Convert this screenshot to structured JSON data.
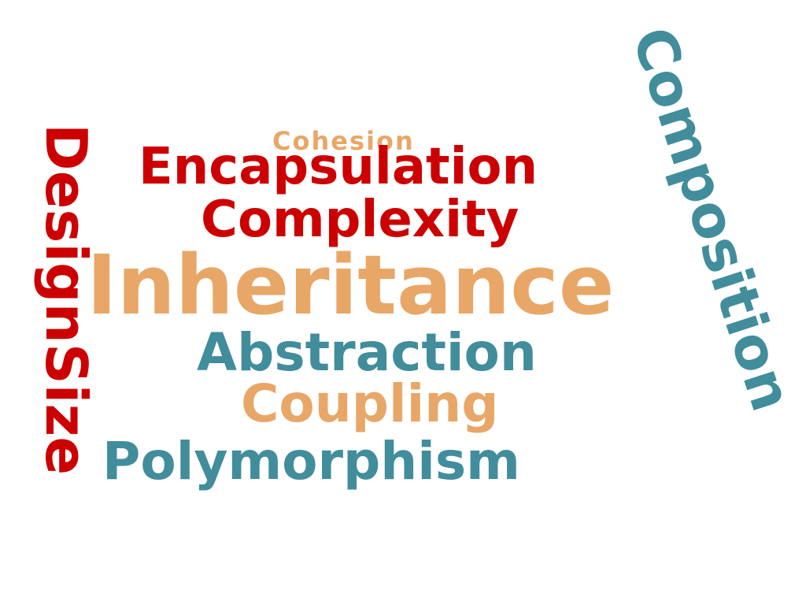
{
  "colors": {
    "red": "#cc0000",
    "orange": "#e8a767",
    "teal": "#418d9c",
    "background": "#ffffff"
  },
  "words": {
    "inheritance": "Inheritance",
    "encapsulation": "Encapsulation",
    "complexity": "Complexity",
    "abstraction": "Abstraction",
    "coupling": "Coupling",
    "polymorphism": "Polymorphism",
    "cohesion": "Cohesion",
    "designsize": "DesignSize",
    "composition": "Composition"
  }
}
